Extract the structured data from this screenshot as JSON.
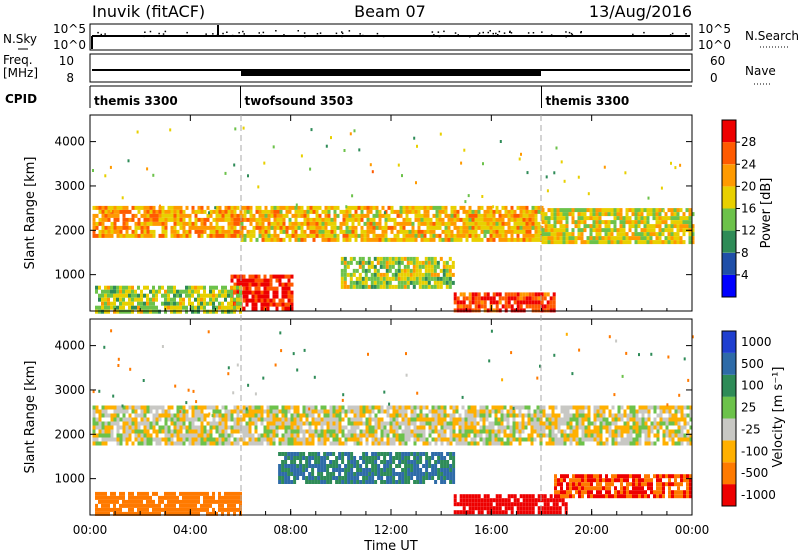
{
  "header": {
    "station": "Inuvik (fitACF)",
    "beam": "Beam 07",
    "date": "13/Aug/2016"
  },
  "summary": {
    "nsky_label": "N.Sky",
    "nsky_ticks": [
      "10^5",
      "10^0"
    ],
    "nsearch_label": "N.Search",
    "nsearch_ticks": [
      "10^5",
      "10^0"
    ],
    "freq_label": "Freq.",
    "freq_unit": "[MHz]",
    "freq_ticks": [
      "10",
      "8"
    ],
    "nave_label": "Nave",
    "nave_ticks": [
      "60",
      "0"
    ],
    "cpid_label": "CPID"
  },
  "cpid_segments": [
    {
      "name": "themis 3300",
      "start_h": 0,
      "end_h": 6
    },
    {
      "name": "twofsound 3503",
      "start_h": 6,
      "end_h": 18
    },
    {
      "name": "themis 3300",
      "start_h": 18,
      "end_h": 24
    }
  ],
  "power_panel": {
    "ylabel": "Slant Range [km]",
    "yticks": [
      1000,
      2000,
      3000,
      4000
    ],
    "ylim": [
      180,
      4600
    ],
    "colorbar_label": "Power [dB]",
    "colorbar_ticks": [
      "4",
      "8",
      "12",
      "16",
      "20",
      "24",
      "28"
    ],
    "colors": [
      "#0000ff",
      "#1f4fa8",
      "#2e8b57",
      "#6cc24a",
      "#e8d000",
      "#ff9a00",
      "#ff5a00",
      "#ee0000"
    ]
  },
  "velocity_panel": {
    "ylabel": "Slant Range [km]",
    "yticks": [
      1000,
      2000,
      3000,
      4000
    ],
    "ylim": [
      180,
      4600
    ],
    "colorbar_label": "Velocity [m s⁻¹]",
    "colorbar_ticks": [
      "1000",
      "500",
      "100",
      "25",
      "-25",
      "-100",
      "-500",
      "-1000"
    ],
    "colors": [
      "#1f3fcf",
      "#2e6ba8",
      "#2e8b57",
      "#6cc24a",
      "#c8c8c4",
      "#ffb000",
      "#ff7a00",
      "#ee0000"
    ]
  },
  "xaxis": {
    "label": "Time UT",
    "ticks": [
      "00:00",
      "04:00",
      "08:00",
      "12:00",
      "16:00",
      "20:00",
      "00:00"
    ],
    "xlim_hours": [
      0,
      24
    ]
  },
  "chart_data": {
    "type": "heatmap",
    "title": "Inuvik (fitACF) Beam 07 13/Aug/2016",
    "xlabel": "Time UT",
    "ylabel": "Slant Range [km]",
    "x_range_hours": [
      0,
      24
    ],
    "y_range_km": [
      180,
      4600
    ],
    "power_regions": [
      {
        "t": [
          0.1,
          6.0
        ],
        "r": [
          1850,
          2550
        ],
        "level": 20
      },
      {
        "t": [
          6.0,
          18.0
        ],
        "r": [
          1750,
          2550
        ],
        "level": 18
      },
      {
        "t": [
          18.0,
          24.0
        ],
        "r": [
          1700,
          2500
        ],
        "level": 16
      },
      {
        "t": [
          5.6,
          8.0
        ],
        "r": [
          200,
          1000
        ],
        "level": 28
      },
      {
        "t": [
          10.0,
          14.5
        ],
        "r": [
          700,
          1400
        ],
        "level": 14
      },
      {
        "t": [
          14.5,
          18.5
        ],
        "r": [
          200,
          600
        ],
        "level": 26
      },
      {
        "t": [
          0.2,
          6.0
        ],
        "r": [
          200,
          750
        ],
        "level": 14
      }
    ],
    "velocity_regions": [
      {
        "t": [
          0.1,
          24.0
        ],
        "r": [
          1800,
          2650
        ],
        "v": 0
      },
      {
        "t": [
          7.5,
          14.5
        ],
        "r": [
          900,
          1600
        ],
        "v": 300
      },
      {
        "t": [
          0.2,
          6.0
        ],
        "r": [
          200,
          700
        ],
        "v": -200
      },
      {
        "t": [
          14.5,
          19.0
        ],
        "r": [
          200,
          650
        ],
        "v": -400
      },
      {
        "t": [
          18.5,
          24.0
        ],
        "r": [
          600,
          1100
        ],
        "v": -300
      }
    ]
  }
}
